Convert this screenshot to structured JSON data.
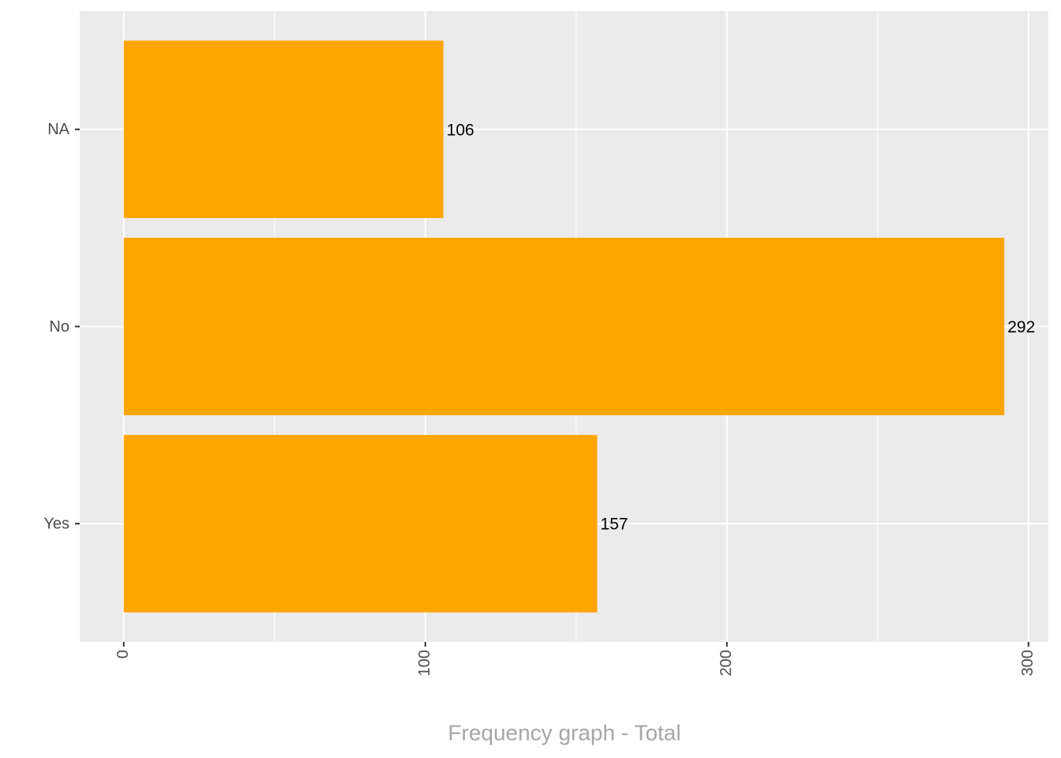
{
  "chart_data": {
    "type": "barh",
    "x_label": "Frequency graph - Total",
    "categories": [
      "NA",
      "No",
      "Yes"
    ],
    "values": [
      106,
      292,
      157
    ],
    "color": "#ffa500",
    "xlim": [
      -14.6,
      306.6
    ],
    "xticks": [
      0,
      100,
      200,
      300
    ],
    "xminorticks": [
      50,
      150,
      250
    ],
    "grid": true,
    "panel_color": "#ebebeb"
  }
}
